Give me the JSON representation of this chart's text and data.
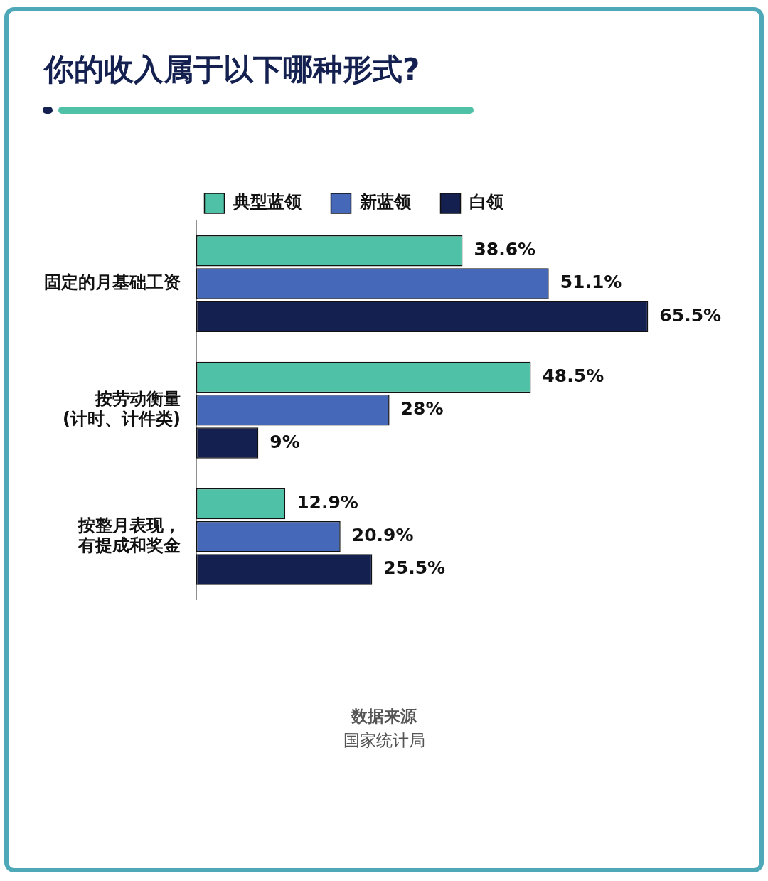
{
  "chart_data": {
    "type": "bar",
    "orientation": "horizontal",
    "title": "你的收入属于以下哪种形式?",
    "categories": [
      "固定的月基础工资",
      "按劳动衡量(计时、计件类)",
      "按整月表现，有提成和奖金"
    ],
    "series": [
      {
        "name": "典型蓝领",
        "color": "#4fc1a6",
        "values": [
          38.6,
          48.5,
          12.9
        ],
        "value_labels": [
          "38.6%",
          "48.5%",
          "12.9%"
        ]
      },
      {
        "name": "新蓝领",
        "color": "#4569b8",
        "values": [
          51.1,
          28,
          20.9
        ],
        "value_labels": [
          "51.1%",
          "28%",
          "20.9%"
        ]
      },
      {
        "name": "白领",
        "color": "#142050",
        "values": [
          65.5,
          9,
          25.5
        ],
        "value_labels": [
          "65.5%",
          "9%",
          "25.5%"
        ]
      }
    ],
    "legend": "top",
    "annotations": [
      "数据来源",
      "国家统计局"
    ]
  }
}
